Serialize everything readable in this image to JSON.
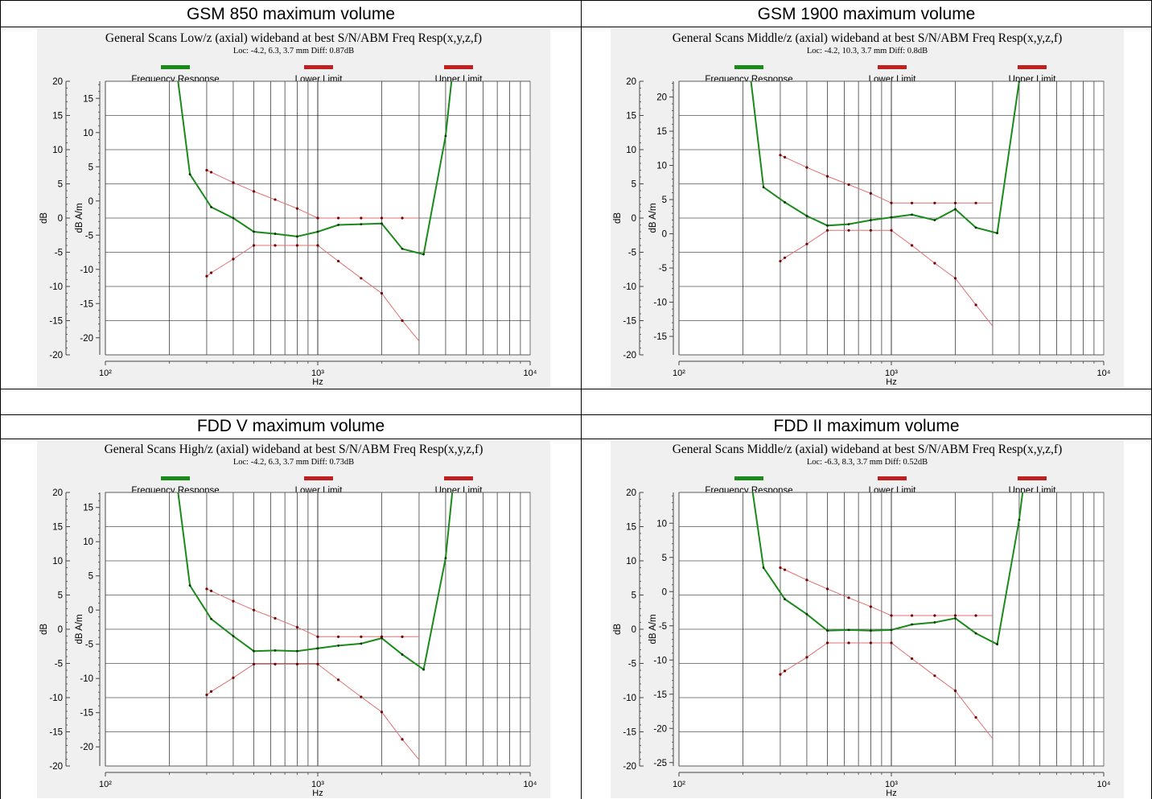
{
  "table": {
    "rows": [
      {
        "cells": [
          "GSM 850 maximum volume",
          "GSM 1900 maximum volume"
        ]
      },
      {
        "cells": [
          "",
          ""
        ]
      },
      {
        "cells": [
          "FDD V maximum volume",
          "FDD II maximum volume"
        ]
      }
    ]
  },
  "legend": {
    "freq": "Frequency Response",
    "lower": "Lower Limit",
    "upper": "Upper Limit"
  },
  "colors": {
    "response": "#1a8a1a",
    "limits": "#e07070",
    "limit_points": "#7a0000",
    "legend_red": "#c02020",
    "legend_green": "#1a8a1a",
    "grid": "#000000",
    "panel_bg": "#f0f0f0"
  },
  "chart_data": [
    {
      "type": "line",
      "title": "General Scans Low/z (axial) wideband at best S/N/ABM Freq Resp(x,y,z,f)",
      "subtitle": "Loc: -4.2, 6.3, 3.7 mm Diff: 0.87dB",
      "xlabel": "Hz",
      "ylabel_left": "dB",
      "ylabel_right": "dB A/m",
      "xscale": "log",
      "xlim": [
        100,
        10000
      ],
      "ylim": [
        -20,
        20
      ],
      "y_ticks": [
        -20,
        -15,
        -10,
        -5,
        0,
        5,
        10,
        15,
        20
      ],
      "y2_ticks": [
        -20,
        -15,
        -10,
        -5,
        0,
        5,
        10,
        15
      ],
      "y2_offset": 2.5,
      "x_tick_labels": [
        "10²",
        "10³",
        "10⁴"
      ],
      "legend_position": "top",
      "series": [
        {
          "name": "Frequency Response",
          "x": [
            200,
            250,
            315,
            400,
            500,
            630,
            800,
            1000,
            1250,
            1600,
            2000,
            2500,
            3150,
            4000,
            5000
          ],
          "y": [
            30,
            6.4,
            1.6,
            0,
            -2,
            -2.3,
            -2.7,
            -2,
            -1,
            -0.9,
            -0.8,
            -4.5,
            -5.3,
            12,
            40
          ]
        },
        {
          "name": "Lower Limit",
          "x": [
            300,
            315,
            400,
            500,
            630,
            800,
            1000,
            1250,
            1600,
            2000,
            2500,
            3000
          ],
          "y": [
            -8.5,
            -8,
            -6,
            -4,
            -4,
            -4,
            -4,
            -6.3,
            -8.8,
            -11,
            -15,
            -18
          ]
        },
        {
          "name": "Upper Limit",
          "x": [
            300,
            315,
            400,
            500,
            630,
            800,
            1000,
            1250,
            1600,
            2000,
            2500,
            3000
          ],
          "y": [
            7,
            6.7,
            5.2,
            3.9,
            2.7,
            1.4,
            0,
            0,
            0,
            0,
            0,
            0
          ]
        }
      ]
    },
    {
      "type": "line",
      "title": "General Scans Middle/z (axial) wideband at best S/N/ABM Freq Resp(x,y,z,f)",
      "subtitle": "Loc: -4.2, 10.3, 3.7 mm Diff: 0.8dB",
      "xlabel": "Hz",
      "ylabel_left": "dB",
      "ylabel_right": "dB A/m",
      "xscale": "log",
      "xlim": [
        100,
        10000
      ],
      "ylim": [
        -20,
        20
      ],
      "y_ticks": [
        -20,
        -15,
        -10,
        -5,
        0,
        5,
        10,
        15,
        20
      ],
      "y2_ticks": [
        -15,
        -10,
        -5,
        0,
        5,
        10,
        15,
        20
      ],
      "y2_offset": -2.3,
      "x_tick_labels": [
        "10²",
        "10³",
        "10⁴"
      ],
      "legend_position": "top",
      "series": [
        {
          "name": "Frequency Response",
          "x": [
            200,
            250,
            315,
            400,
            500,
            630,
            800,
            1000,
            1250,
            1600,
            2000,
            2500,
            3150,
            4000,
            5000
          ],
          "y": [
            30,
            4.5,
            2.3,
            0.3,
            -1.1,
            -0.9,
            -0.3,
            0.1,
            0.5,
            -0.3,
            1.3,
            -1.4,
            -2.2,
            20,
            40
          ]
        },
        {
          "name": "Lower Limit",
          "x": [
            300,
            315,
            400,
            500,
            630,
            800,
            1000,
            1250,
            1600,
            2000,
            2500,
            3000
          ],
          "y": [
            -6.3,
            -5.8,
            -3.8,
            -1.8,
            -1.8,
            -1.8,
            -1.8,
            -4,
            -6.6,
            -8.8,
            -12.7,
            -15.8
          ]
        },
        {
          "name": "Upper Limit",
          "x": [
            300,
            315,
            400,
            500,
            630,
            800,
            1000,
            1250,
            1600,
            2000,
            2500,
            3000
          ],
          "y": [
            9.2,
            8.9,
            7.4,
            6.1,
            4.9,
            3.6,
            2.2,
            2.2,
            2.2,
            2.2,
            2.2,
            2.2
          ]
        }
      ]
    },
    {
      "type": "line",
      "title": "General Scans High/z (axial) wideband at best S/N/ABM Freq Resp(x,y,z,f)",
      "subtitle": "Loc: -4.2, 6.3, 3.7 mm Diff: 0.73dB",
      "xlabel": "Hz",
      "ylabel_left": "dB",
      "ylabel_right": "dB A/m",
      "xscale": "log",
      "xlim": [
        100,
        10000
      ],
      "ylim": [
        -20,
        20
      ],
      "y_ticks": [
        -20,
        -15,
        -10,
        -5,
        0,
        5,
        10,
        15,
        20
      ],
      "y2_ticks": [
        -20,
        -15,
        -10,
        -5,
        0,
        5,
        10,
        15
      ],
      "y2_offset": 2.8,
      "x_tick_labels": [
        "10²",
        "10³",
        "10⁴"
      ],
      "legend_position": "top",
      "series": [
        {
          "name": "Frequency Response",
          "x": [
            200,
            250,
            315,
            400,
            500,
            630,
            800,
            1000,
            1250,
            1600,
            2000,
            2500,
            3150,
            4000,
            5000
          ],
          "y": [
            30,
            6.4,
            1.5,
            -1,
            -3.2,
            -3.1,
            -3.2,
            -2.8,
            -2.4,
            -2.1,
            -1.3,
            -3.7,
            -5.9,
            10.4,
            40
          ]
        },
        {
          "name": "Lower Limit",
          "x": [
            300,
            315,
            400,
            500,
            630,
            800,
            1000,
            1250,
            1600,
            2000,
            2500,
            3000
          ],
          "y": [
            -9.6,
            -9.1,
            -7.1,
            -5.1,
            -5.1,
            -5.1,
            -5.1,
            -7.4,
            -9.9,
            -12.1,
            -16.1,
            -19.1
          ]
        },
        {
          "name": "Upper Limit",
          "x": [
            300,
            315,
            400,
            500,
            630,
            800,
            1000,
            1250,
            1600,
            2000,
            2500,
            3000
          ],
          "y": [
            5.9,
            5.6,
            4.1,
            2.8,
            1.6,
            0.3,
            -1.1,
            -1.1,
            -1.1,
            -1.1,
            -1.1,
            -1.1
          ]
        }
      ]
    },
    {
      "type": "line",
      "title": "General Scans Middle/z (axial) wideband at best S/N/ABM Freq Resp(x,y,z,f)",
      "subtitle": "Loc: -6.3, 8.3, 3.7 mm Diff: 0.52dB",
      "xlabel": "Hz",
      "ylabel_left": "dB",
      "ylabel_right": "dB A/m",
      "xscale": "log",
      "xlim": [
        100,
        10000
      ],
      "ylim": [
        -20,
        20
      ],
      "y_ticks": [
        -20,
        -15,
        -10,
        -5,
        0,
        5,
        10,
        15,
        20
      ],
      "y2_ticks": [
        -25,
        -20,
        -15,
        -10,
        -5,
        0,
        5,
        10
      ],
      "y2_offset": 5.5,
      "x_tick_labels": [
        "10²",
        "10³",
        "10⁴"
      ],
      "legend_position": "top",
      "series": [
        {
          "name": "Frequency Response",
          "x": [
            200,
            250,
            315,
            400,
            500,
            630,
            800,
            1000,
            1250,
            1600,
            2000,
            2500,
            3150,
            4000,
            5000
          ],
          "y": [
            30,
            9,
            4.4,
            2.2,
            -0.2,
            -0.1,
            -0.2,
            -0.1,
            0.7,
            1,
            1.6,
            -0.6,
            -2.2,
            16,
            40
          ]
        },
        {
          "name": "Lower Limit",
          "x": [
            300,
            315,
            400,
            500,
            630,
            800,
            1000,
            1250,
            1600,
            2000,
            2500,
            3000
          ],
          "y": [
            -6.6,
            -6.1,
            -4.1,
            -2,
            -2,
            -2,
            -2,
            -4.3,
            -6.8,
            -9,
            -12.9,
            -16
          ]
        },
        {
          "name": "Upper Limit",
          "x": [
            300,
            315,
            400,
            500,
            630,
            800,
            1000,
            1250,
            1600,
            2000,
            2500,
            3000
          ],
          "y": [
            9,
            8.7,
            7.2,
            5.9,
            4.6,
            3.3,
            2,
            2,
            2,
            2,
            2,
            2
          ]
        }
      ]
    }
  ]
}
